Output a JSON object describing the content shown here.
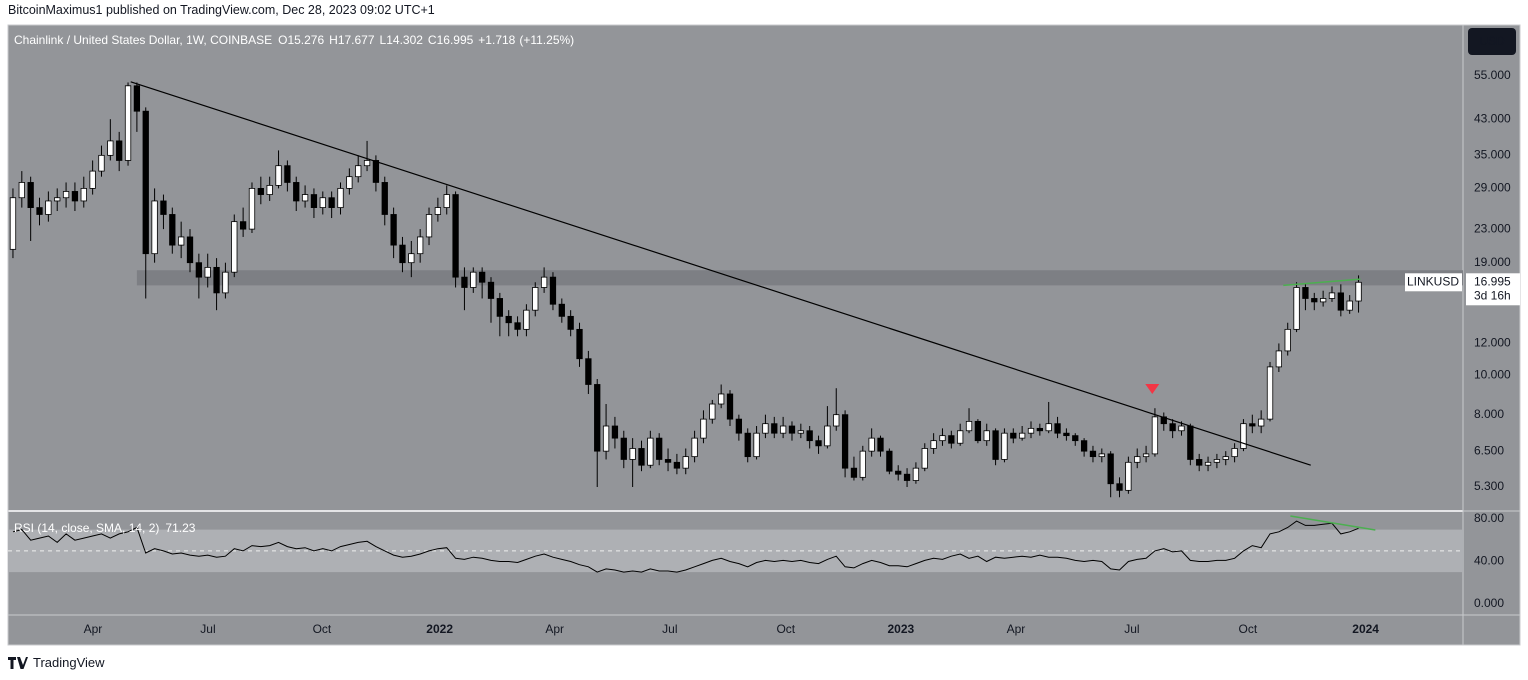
{
  "header": {
    "published": "BitcoinMaximus1 published on TradingView.com, Dec 28, 2023 09:02 UTC+1"
  },
  "chart_data": {
    "type": "candlestick",
    "title": "Chainlink / United States Dollar, 1W, COINBASE",
    "ohlc_legend": {
      "labels": [
        "O",
        "H",
        "L",
        "C"
      ],
      "change": {
        "value": 1.718,
        "label": "+1.718"
      },
      "change_pct": {
        "value": 11.25,
        "label": "(+11.25%)"
      }
    },
    "open": [
      20.5,
      27.5,
      30,
      26,
      25,
      27,
      27.5,
      28.5,
      27,
      29,
      32,
      35,
      38,
      34,
      52,
      45,
      20,
      27,
      25,
      21,
      22,
      19,
      17.5,
      18.5,
      16,
      18,
      24,
      23,
      29,
      28,
      29.5,
      33,
      30,
      27,
      28,
      26,
      27.5,
      26,
      29,
      31,
      33,
      34,
      30,
      25,
      21,
      19,
      20,
      22,
      25,
      26,
      28,
      17.5,
      16.5,
      18,
      17,
      15.5,
      14,
      13.5,
      13,
      14.5,
      16.5,
      17.5,
      15,
      14,
      13,
      11,
      9.5,
      6.5,
      7.5,
      7,
      6.2,
      6.6,
      6,
      7,
      6.2,
      6.1,
      5.9,
      6.3,
      7,
      7.8,
      8.5,
      9,
      7.8,
      7.2,
      6.3,
      7.2,
      7.6,
      7.2,
      7.5,
      7.2,
      7.3,
      6.9,
      6.7,
      7.5,
      8,
      5.9,
      5.6,
      6.5,
      7,
      6.5,
      5.8,
      5.7,
      5.5,
      5.9,
      6.6,
      6.9,
      7.1,
      6.8,
      7.3,
      7.7,
      6.9,
      7.3,
      6.2,
      7.2,
      7,
      7.2,
      7.4,
      7.3,
      7.6,
      7.2,
      7.1,
      6.9,
      6.5,
      6.3,
      6.4,
      5.4,
      5.2,
      6.1,
      6.3,
      6.4,
      7.9,
      7.6,
      7.3,
      7.5,
      6.2,
      6,
      6.1,
      6.2,
      6.3,
      6.6,
      7.6,
      7.5,
      7.8,
      10.5,
      11.5,
      13,
      16.5,
      15.5,
      15.2,
      15.5,
      16,
      14.5,
      15.276
    ],
    "high": [
      29,
      32,
      31,
      27.5,
      28.5,
      29,
      30,
      30,
      31,
      34,
      37,
      43,
      40,
      53,
      53,
      46,
      29,
      28,
      26,
      24,
      23,
      20,
      20,
      19.5,
      19,
      25,
      26,
      30,
      31,
      31,
      36,
      34,
      31,
      29.5,
      29,
      28.5,
      28.5,
      30,
      32.5,
      35,
      38,
      35,
      31,
      26,
      22,
      21.5,
      23,
      26,
      27.5,
      29.5,
      28.5,
      18.5,
      18.5,
      18.5,
      17.5,
      16,
      14.5,
      14,
      15,
      17,
      18.5,
      18,
      15.5,
      14.5,
      13.5,
      11.5,
      9.8,
      8.5,
      7.9,
      7.3,
      7,
      6.9,
      7.3,
      7.2,
      6.6,
      6.4,
      6.6,
      7.3,
      8.2,
      8.7,
      9.5,
      9.2,
      8,
      7.4,
      7.5,
      8,
      7.9,
      7.9,
      7.7,
      7.6,
      7.5,
      7.1,
      8.4,
      9.3,
      8.2,
      6.3,
      6.7,
      7.4,
      7.1,
      6.6,
      6,
      5.9,
      6.1,
      6.8,
      7.2,
      7.4,
      7.3,
      7.6,
      8.3,
      7.8,
      7.6,
      7.4,
      7.4,
      7.4,
      7.5,
      7.7,
      7.6,
      8.6,
      7.9,
      7.4,
      7.2,
      7,
      6.7,
      6.6,
      6.5,
      5.6,
      6.3,
      6.6,
      6.7,
      8.3,
      8.1,
      7.8,
      7.7,
      7.6,
      6.4,
      6.3,
      6.4,
      6.5,
      6.8,
      7.8,
      8,
      8.2,
      10.8,
      12,
      13.5,
      17,
      16.8,
      16,
      16.2,
      16.6,
      16.8,
      15.8,
      17.677
    ],
    "low": [
      19.5,
      26,
      21.5,
      23.5,
      24,
      25.5,
      26,
      25.5,
      26,
      28,
      31,
      34,
      32,
      33,
      40,
      15.5,
      19,
      23,
      20,
      19.5,
      18,
      15.5,
      16.5,
      14.5,
      15.5,
      17.5,
      22,
      22.5,
      26.5,
      27,
      29,
      28.5,
      25.5,
      26,
      24.5,
      25,
      24.5,
      25,
      28,
      30,
      32,
      28.5,
      23.5,
      19.5,
      18,
      17.5,
      19,
      21,
      24,
      25,
      16.5,
      14.5,
      16,
      15.5,
      13.5,
      12.5,
      12.5,
      12.5,
      12.5,
      14,
      16,
      14.5,
      13.5,
      12.5,
      10.5,
      9,
      5.3,
      6.2,
      6.6,
      5.9,
      5.3,
      5.8,
      5.9,
      6,
      5.8,
      5.7,
      5.7,
      6.1,
      6.8,
      7.6,
      8.3,
      7.5,
      6.9,
      6.1,
      6.2,
      7,
      7,
      7,
      6.9,
      7,
      6.6,
      6.4,
      6.6,
      7.3,
      5.6,
      5.5,
      5.5,
      6.3,
      6.3,
      5.7,
      5.5,
      5.3,
      5.4,
      5.8,
      6.4,
      6.7,
      6.6,
      6.7,
      7.2,
      6.8,
      6.7,
      6,
      6.1,
      6.8,
      6.9,
      7,
      7.1,
      7.2,
      7,
      6.9,
      6.7,
      6.3,
      6.1,
      6.1,
      5,
      5,
      5.1,
      5.9,
      6.1,
      6.3,
      7.3,
      7,
      7.1,
      6,
      5.8,
      5.8,
      5.9,
      6,
      6.1,
      6.5,
      7.2,
      7.2,
      7.7,
      10.2,
      11.2,
      12.8,
      14.5,
      14.5,
      14.8,
      15.2,
      14,
      14.2,
      14.302
    ],
    "close": [
      27.5,
      30,
      26,
      25,
      27,
      27.5,
      28.5,
      27,
      29,
      32,
      35,
      38,
      34,
      52,
      45,
      20,
      27,
      25,
      21,
      22,
      19,
      17.5,
      18.5,
      16,
      18,
      24,
      23,
      29,
      28,
      29.5,
      33,
      30,
      27,
      28,
      26,
      27.5,
      26,
      29,
      31,
      33,
      34,
      30,
      25,
      21,
      19,
      20,
      22,
      25,
      26,
      28,
      17.5,
      16.5,
      18,
      17,
      15.5,
      14,
      13.5,
      13,
      14.5,
      16.5,
      17.5,
      15,
      14,
      13,
      11,
      9.5,
      6.5,
      7.5,
      7,
      6.2,
      6.6,
      6,
      7,
      6.2,
      6.1,
      5.9,
      6.3,
      7,
      7.8,
      8.5,
      9,
      7.8,
      7.2,
      6.3,
      7.2,
      7.6,
      7.2,
      7.5,
      7.2,
      7.3,
      6.9,
      6.7,
      7.5,
      8,
      5.9,
      5.6,
      6.5,
      7,
      6.5,
      5.8,
      5.7,
      5.5,
      5.9,
      6.6,
      6.9,
      7.1,
      6.8,
      7.3,
      7.7,
      6.9,
      7.3,
      6.2,
      7.2,
      7,
      7.2,
      7.4,
      7.3,
      7.6,
      7.2,
      7.1,
      6.9,
      6.5,
      6.3,
      6.4,
      5.4,
      5.2,
      6.1,
      6.3,
      6.4,
      7.9,
      7.6,
      7.3,
      7.5,
      6.2,
      6,
      6.1,
      6.2,
      6.3,
      6.6,
      7.6,
      7.5,
      7.8,
      10.5,
      11.5,
      13,
      16.5,
      15.5,
      15.2,
      15.5,
      16,
      14.5,
      15.276,
      16.995
    ],
    "colors": {
      "up": "#ffffff",
      "down": "#000000",
      "wick": "#000000",
      "background": "#939599"
    },
    "log_scale": true,
    "ylim": [
      4.65,
      73.5
    ],
    "yticks": [
      {
        "value": 55,
        "label": "55.000"
      },
      {
        "value": 43,
        "label": "43.000"
      },
      {
        "value": 35,
        "label": "35.000"
      },
      {
        "value": 29,
        "label": "29.000"
      },
      {
        "value": 23,
        "label": "23.000"
      },
      {
        "value": 19,
        "label": "19.000"
      },
      {
        "value": 12,
        "label": "12.000"
      },
      {
        "value": 10,
        "label": "10.000"
      },
      {
        "value": 8,
        "label": "8.000"
      },
      {
        "value": 6.5,
        "label": "6.500"
      },
      {
        "value": 5.3,
        "label": "5.300"
      }
    ],
    "xlim": [
      -0.56,
      163.8
    ],
    "xticks": [
      {
        "value": 9.04,
        "label": "Apr"
      },
      {
        "value": 22.03,
        "label": "Jul"
      },
      {
        "value": 34.9,
        "label": "Oct"
      },
      {
        "value": 48.2,
        "label": "2022"
      },
      {
        "value": 61.2,
        "label": "Apr"
      },
      {
        "value": 74.2,
        "label": "Jul"
      },
      {
        "value": 87.3,
        "label": "Oct"
      },
      {
        "value": 100.3,
        "label": "2023"
      },
      {
        "value": 113.3,
        "label": "Apr"
      },
      {
        "value": 126.4,
        "label": "Jul"
      },
      {
        "value": 139.5,
        "label": "Oct"
      },
      {
        "value": 152.8,
        "label": "2024"
      }
    ],
    "symbol": "LINKUSD",
    "countdown": "3d 16h",
    "currency": "USD",
    "trendline": {
      "x": [
        13.3,
        146.6
      ],
      "values": [
        53.2,
        6.0
      ],
      "color": "#000000"
    },
    "zone": {
      "x": 14,
      "values": [
        16.7,
        18.2
      ],
      "color": "#7d7f84"
    },
    "resistance": {
      "x": [
        143.5,
        152.2
      ],
      "values": [
        16.7,
        17.3
      ],
      "color": "#4caf50"
    },
    "marker": {
      "x": 128.7,
      "value": 9.0,
      "color": "#f23645"
    },
    "rsi": {
      "title": "RSI (14, close, SMA, 14, 2)",
      "color": "#000000",
      "values": [
        68,
        70,
        60,
        62,
        64,
        58,
        66,
        60,
        62,
        64,
        66,
        62,
        66,
        68,
        72,
        48,
        52,
        50,
        47,
        48,
        46,
        45,
        46,
        44,
        45,
        52,
        50,
        55,
        54,
        55,
        58,
        54,
        52,
        53,
        50,
        52,
        50,
        54,
        56,
        58,
        59,
        54,
        50,
        46,
        44,
        45,
        47,
        50,
        52,
        53,
        43,
        42,
        44,
        43,
        41,
        40,
        40,
        39,
        42,
        45,
        47,
        44,
        42,
        40,
        37,
        35,
        30,
        33,
        32,
        30,
        31,
        30,
        33,
        31,
        31,
        30,
        32,
        35,
        38,
        41,
        43,
        40,
        38,
        35,
        39,
        41,
        40,
        41,
        40,
        41,
        39,
        38,
        42,
        45,
        35,
        34,
        38,
        41,
        39,
        36,
        36,
        35,
        38,
        41,
        43,
        42,
        45,
        47,
        43,
        45,
        40,
        44,
        43,
        44,
        45,
        44,
        46,
        44,
        44,
        43,
        41,
        40,
        41,
        40,
        33,
        32,
        40,
        42,
        43,
        50,
        52,
        49,
        50,
        41,
        40,
        40,
        41,
        41,
        43,
        50,
        55,
        53,
        66,
        68,
        72,
        78,
        74,
        74,
        75,
        76,
        66,
        68,
        71.23
      ],
      "ylim": [
        -10.4,
        86.6
      ],
      "yticks": [
        {
          "value": 80,
          "label": "80.00"
        },
        {
          "value": 40,
          "label": "40.00"
        },
        {
          "value": 0,
          "label": "0.000"
        }
      ],
      "band": [
        30,
        70
      ],
      "midline": 50,
      "divergence": {
        "x": [
          144.3,
          153.9
        ],
        "values": [
          82.8,
          69.6
        ],
        "color": "#4caf50"
      }
    }
  },
  "footer": {
    "brand": "TradingView"
  }
}
